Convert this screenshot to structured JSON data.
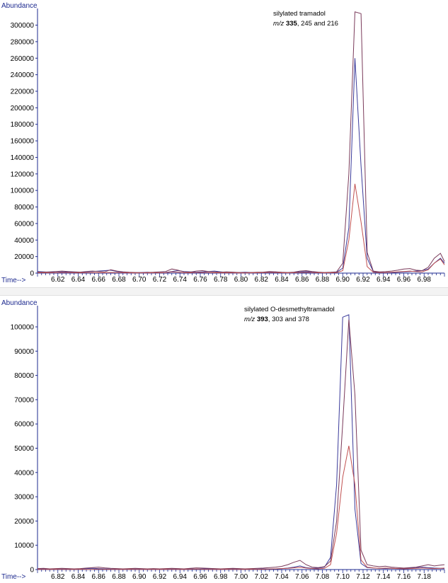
{
  "colors": {
    "axis": "#1d2a8f",
    "text": "#000000"
  },
  "chart_data": [
    {
      "type": "line",
      "ylabel": "Abundance",
      "xlabel": "Time-->",
      "annotation": {
        "line1": "silylated tramadol",
        "mz_prefix": "m/z",
        "mz_bold": "335",
        "mz_rest": ", 245 and 216"
      },
      "xlim": [
        6.6,
        7.0
      ],
      "ylim": [
        0,
        315000
      ],
      "xticks": [
        "6.62",
        "6.64",
        "6.66",
        "6.68",
        "6.70",
        "6.72",
        "6.74",
        "6.76",
        "6.78",
        "6.80",
        "6.82",
        "6.84",
        "6.86",
        "6.88",
        "6.90",
        "6.92",
        "6.94",
        "6.96",
        "6.98"
      ],
      "yticks": [
        0,
        20000,
        40000,
        60000,
        80000,
        100000,
        120000,
        140000,
        160000,
        180000,
        200000,
        220000,
        240000,
        260000,
        280000,
        300000
      ],
      "x": [
        6.6,
        6.606,
        6.612,
        6.618,
        6.624,
        6.63,
        6.636,
        6.642,
        6.648,
        6.654,
        6.66,
        6.666,
        6.672,
        6.678,
        6.684,
        6.69,
        6.696,
        6.702,
        6.708,
        6.714,
        6.72,
        6.726,
        6.732,
        6.738,
        6.744,
        6.75,
        6.756,
        6.762,
        6.768,
        6.774,
        6.78,
        6.786,
        6.792,
        6.798,
        6.804,
        6.81,
        6.816,
        6.822,
        6.828,
        6.834,
        6.84,
        6.846,
        6.852,
        6.858,
        6.864,
        6.87,
        6.876,
        6.882,
        6.888,
        6.894,
        6.9,
        6.906,
        6.912,
        6.918,
        6.924,
        6.93,
        6.936,
        6.942,
        6.948,
        6.954,
        6.96,
        6.966,
        6.972,
        6.978,
        6.984,
        6.99,
        6.996,
        7.0
      ],
      "series": [
        {
          "color": "#3a3a9a",
          "values": [
            2000,
            1500,
            1000,
            800,
            1500,
            1200,
            1000,
            800,
            1500,
            2000,
            2500,
            3000,
            3500,
            2000,
            1000,
            800,
            500,
            800,
            1000,
            600,
            500,
            800,
            2000,
            3000,
            2000,
            1500,
            1000,
            1500,
            2000,
            2500,
            1500,
            800,
            500,
            800,
            1000,
            800,
            500,
            400,
            1000,
            1500,
            800,
            500,
            800,
            1500,
            2000,
            1500,
            800,
            500,
            800,
            1200,
            6000,
            55000,
            260000,
            130000,
            18000,
            2000,
            800,
            500,
            800,
            1000,
            1500,
            2000,
            2500,
            3000,
            5000,
            12000,
            18000,
            12000
          ]
        },
        {
          "color": "#7a3a5a",
          "values": [
            1000,
            1200,
            1500,
            2000,
            2500,
            2000,
            1500,
            1200,
            2000,
            2500,
            2000,
            1500,
            4000,
            2500,
            1500,
            1000,
            800,
            500,
            800,
            1000,
            1500,
            2000,
            5000,
            3500,
            1500,
            1200,
            2500,
            3000,
            2000,
            1500,
            1000,
            1500,
            1200,
            800,
            500,
            800,
            1000,
            1200,
            2000,
            1500,
            1000,
            800,
            1200,
            2500,
            3000,
            2000,
            1200,
            800,
            1000,
            1500,
            12000,
            120000,
            316000,
            314000,
            25000,
            2500,
            1500,
            1800,
            2500,
            3500,
            5000,
            5500,
            3500,
            3000,
            7000,
            18000,
            24000,
            14000
          ]
        },
        {
          "color": "#c05050",
          "values": [
            500,
            400,
            300,
            500,
            600,
            500,
            400,
            300,
            500,
            600,
            500,
            400,
            800,
            600,
            400,
            300,
            200,
            300,
            400,
            300,
            300,
            500,
            1500,
            1000,
            500,
            400,
            600,
            800,
            600,
            400,
            300,
            400,
            300,
            200,
            200,
            300,
            400,
            500,
            800,
            600,
            400,
            300,
            400,
            700,
            900,
            700,
            400,
            300,
            400,
            500,
            3000,
            40000,
            108000,
            62000,
            8000,
            1000,
            700,
            800,
            1000,
            1500,
            2000,
            2500,
            1800,
            1500,
            4000,
            12000,
            17000,
            10000
          ]
        }
      ]
    },
    {
      "type": "line",
      "ylabel": "Abundance",
      "xlabel": "Time-->",
      "annotation": {
        "line1": "silylated O-desmethyltramadol",
        "mz_prefix": "m/z",
        "mz_bold": "393",
        "mz_rest": ", 303 and 378"
      },
      "xlim": [
        6.8,
        7.2
      ],
      "ylim": [
        0,
        107000
      ],
      "xticks": [
        "6.82",
        "6.84",
        "6.86",
        "6.88",
        "6.90",
        "6.92",
        "6.94",
        "6.96",
        "6.98",
        "7.00",
        "7.02",
        "7.04",
        "7.06",
        "7.08",
        "7.10",
        "7.12",
        "7.14",
        "7.16",
        "7.18"
      ],
      "yticks": [
        0,
        10000,
        20000,
        30000,
        40000,
        50000,
        60000,
        70000,
        80000,
        90000,
        100000
      ],
      "x": [
        6.8,
        6.806,
        6.812,
        6.818,
        6.824,
        6.83,
        6.836,
        6.842,
        6.848,
        6.854,
        6.86,
        6.866,
        6.872,
        6.878,
        6.884,
        6.89,
        6.896,
        6.902,
        6.908,
        6.914,
        6.92,
        6.926,
        6.932,
        6.938,
        6.944,
        6.95,
        6.956,
        6.962,
        6.968,
        6.974,
        6.98,
        6.986,
        6.992,
        6.998,
        7.004,
        7.01,
        7.016,
        7.022,
        7.028,
        7.034,
        7.04,
        7.046,
        7.052,
        7.058,
        7.064,
        7.07,
        7.076,
        7.082,
        7.088,
        7.094,
        7.1,
        7.106,
        7.112,
        7.118,
        7.124,
        7.13,
        7.136,
        7.142,
        7.148,
        7.154,
        7.16,
        7.166,
        7.172,
        7.178,
        7.184,
        7.19,
        7.196,
        7.2
      ],
      "series": [
        {
          "color": "#3a3a9a",
          "values": [
            300,
            300,
            200,
            300,
            200,
            300,
            200,
            300,
            400,
            500,
            400,
            300,
            200,
            300,
            200,
            300,
            200,
            300,
            200,
            300,
            200,
            300,
            200,
            300,
            200,
            300,
            200,
            300,
            300,
            200,
            300,
            200,
            300,
            200,
            200,
            300,
            200,
            300,
            200,
            300,
            400,
            600,
            1000,
            1500,
            800,
            500,
            600,
            1000,
            5000,
            35000,
            104000,
            105000,
            25000,
            2500,
            800,
            600,
            500,
            400,
            500,
            400,
            500,
            600,
            800,
            1000,
            800,
            600,
            500,
            400
          ]
        },
        {
          "color": "#7a3a5a",
          "values": [
            400,
            500,
            300,
            400,
            500,
            400,
            300,
            400,
            600,
            800,
            1000,
            700,
            500,
            400,
            300,
            400,
            500,
            400,
            300,
            400,
            300,
            400,
            500,
            400,
            300,
            500,
            700,
            600,
            500,
            400,
            300,
            400,
            500,
            400,
            300,
            400,
            500,
            600,
            800,
            1000,
            1300,
            2000,
            3000,
            3800,
            2000,
            1000,
            800,
            1200,
            3500,
            20000,
            60000,
            103000,
            72000,
            8000,
            2000,
            1500,
            1200,
            1400,
            1000,
            800,
            600,
            800,
            1000,
            1500,
            2000,
            1500,
            1800,
            2000
          ]
        },
        {
          "color": "#c05050",
          "values": [
            100,
            100,
            100,
            150,
            100,
            100,
            100,
            150,
            100,
            100,
            200,
            150,
            100,
            100,
            100,
            150,
            100,
            100,
            100,
            100,
            100,
            150,
            100,
            100,
            100,
            150,
            200,
            150,
            100,
            100,
            100,
            150,
            100,
            100,
            100,
            150,
            100,
            150,
            200,
            300,
            400,
            500,
            700,
            900,
            600,
            400,
            300,
            500,
            2000,
            15000,
            38000,
            51000,
            35000,
            4000,
            1000,
            700,
            500,
            600,
            500,
            400,
            300,
            400,
            500,
            600,
            500,
            400,
            500,
            600
          ]
        }
      ]
    }
  ]
}
